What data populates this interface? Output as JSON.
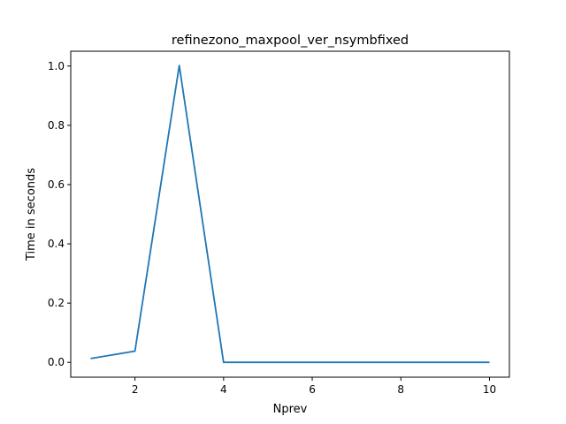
{
  "chart_data": {
    "type": "line",
    "title": "refinezono_maxpool_ver_nsymbfixed",
    "xlabel": "Nprev",
    "ylabel": "Time in seconds",
    "xlim": [
      0.55,
      10.45
    ],
    "ylim": [
      -0.05,
      1.05
    ],
    "xticks": [
      2,
      4,
      6,
      8,
      10
    ],
    "yticks": [
      0.0,
      0.2,
      0.4,
      0.6,
      0.8,
      1.0
    ],
    "xtick_labels": [
      "2",
      "4",
      "6",
      "8",
      "10"
    ],
    "ytick_labels": [
      "0.0",
      "0.2",
      "0.4",
      "0.6",
      "0.8",
      "1.0"
    ],
    "grid": false,
    "series": [
      {
        "color": "#1f77b4",
        "x": [
          1,
          2,
          3,
          4,
          5,
          6,
          7,
          8,
          9,
          10
        ],
        "y": [
          0.013,
          0.038,
          1.002,
          0.0,
          0.0,
          0.0,
          0.0,
          0.0,
          0.0,
          0.0
        ]
      }
    ]
  }
}
